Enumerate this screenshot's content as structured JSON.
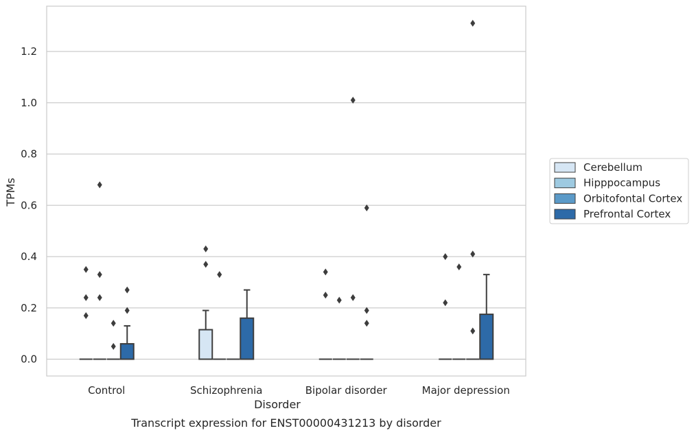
{
  "chart_data": {
    "type": "box",
    "title": "",
    "caption": "Transcript expression for ENST00000431213 by disorder",
    "xlabel": "Disorder",
    "ylabel": "TPMs",
    "ylim": [
      -0.065,
      1.38
    ],
    "yticks": [
      "0.0",
      "0.2",
      "0.4",
      "0.6",
      "0.8",
      "1.0",
      "1.2"
    ],
    "grid": true,
    "legend_position": "right",
    "categories": [
      "Control",
      "Schizophrenia",
      "Bipolar disorder",
      "Major depression"
    ],
    "series": [
      {
        "name": "Cerebellum",
        "color": "#d6e6f4",
        "boxes": [
          {
            "q1": 0,
            "median": 0,
            "q3": 0,
            "whisker_low": 0,
            "whisker_high": 0,
            "outliers": [
              0.35,
              0.24,
              0.17
            ]
          },
          {
            "q1": 0,
            "median": 0,
            "q3": 0.115,
            "whisker_low": 0,
            "whisker_high": 0.19,
            "outliers": [
              0.43,
              0.37
            ]
          },
          {
            "q1": 0,
            "median": 0,
            "q3": 0,
            "whisker_low": 0,
            "whisker_high": 0,
            "outliers": [
              0.34,
              0.25
            ]
          },
          {
            "q1": 0,
            "median": 0,
            "q3": 0,
            "whisker_low": 0,
            "whisker_high": 0,
            "outliers": [
              0.4,
              0.22
            ]
          }
        ]
      },
      {
        "name": "Hipppocampus",
        "color": "#9ecae1",
        "boxes": [
          {
            "q1": 0,
            "median": 0,
            "q3": 0,
            "whisker_low": 0,
            "whisker_high": 0,
            "outliers": [
              0.68,
              0.33,
              0.24
            ]
          },
          {
            "q1": 0,
            "median": 0,
            "q3": 0,
            "whisker_low": 0,
            "whisker_high": 0,
            "outliers": [
              0.33
            ]
          },
          {
            "q1": 0,
            "median": 0,
            "q3": 0,
            "whisker_low": 0,
            "whisker_high": 0,
            "outliers": [
              0.23
            ]
          },
          {
            "q1": 0,
            "median": 0,
            "q3": 0,
            "whisker_low": 0,
            "whisker_high": 0,
            "outliers": [
              0.36
            ]
          }
        ]
      },
      {
        "name": "Orbitofontal Cortex",
        "color": "#5b9ac8",
        "boxes": [
          {
            "q1": 0,
            "median": 0,
            "q3": 0,
            "whisker_low": 0,
            "whisker_high": 0,
            "outliers": [
              0.14,
              0.05
            ]
          },
          {
            "q1": 0,
            "median": 0,
            "q3": 0,
            "whisker_low": 0,
            "whisker_high": 0,
            "outliers": []
          },
          {
            "q1": 0,
            "median": 0,
            "q3": 0,
            "whisker_low": 0,
            "whisker_high": 0,
            "outliers": [
              1.01,
              0.24
            ]
          },
          {
            "q1": 0,
            "median": 0,
            "q3": 0,
            "whisker_low": 0,
            "whisker_high": 0,
            "outliers": [
              1.31,
              0.41,
              0.11
            ]
          }
        ]
      },
      {
        "name": "Prefrontal Cortex",
        "color": "#2d6aa8",
        "boxes": [
          {
            "q1": 0,
            "median": 0,
            "q3": 0.06,
            "whisker_low": 0,
            "whisker_high": 0.13,
            "outliers": [
              0.27,
              0.19
            ]
          },
          {
            "q1": 0,
            "median": 0,
            "q3": 0.16,
            "whisker_low": 0,
            "whisker_high": 0.27,
            "outliers": []
          },
          {
            "q1": 0,
            "median": 0,
            "q3": 0,
            "whisker_low": 0,
            "whisker_high": 0,
            "outliers": [
              0.59,
              0.19,
              0.14
            ]
          },
          {
            "q1": 0,
            "median": 0,
            "q3": 0.175,
            "whisker_low": 0,
            "whisker_high": 0.33,
            "outliers": []
          }
        ]
      }
    ]
  }
}
